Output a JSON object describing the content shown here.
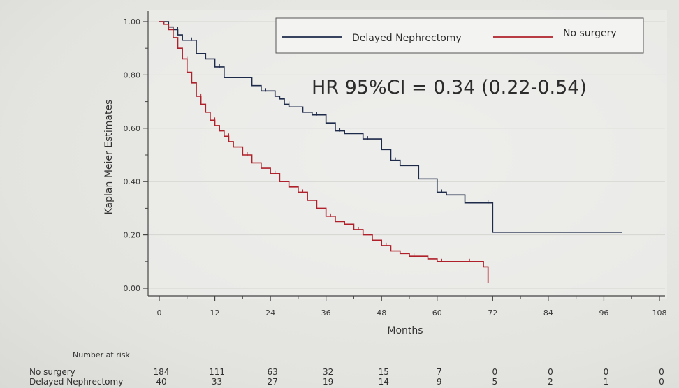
{
  "chart_data": {
    "type": "line",
    "xlabel": "Months",
    "ylabel": "Kaplan Meier Estimates",
    "xlim": [
      0,
      108
    ],
    "ylim": [
      0,
      1
    ],
    "x_ticks": [
      0,
      12,
      24,
      36,
      48,
      60,
      72,
      84,
      96,
      108
    ],
    "y_ticks": [
      "0.00",
      "0.20",
      "0.40",
      "0.60",
      "0.80",
      "1.00"
    ],
    "grid": "horizontal",
    "legend_position": "top-right",
    "annotation": "HR 95%CI = 0.34 (0.22-0.54)",
    "series": [
      {
        "name": "Delayed Nephrectomy",
        "color": "#1e2a4a",
        "step": true,
        "x": [
          0,
          2,
          3,
          4,
          5,
          6,
          8,
          10,
          12,
          14,
          20,
          22,
          25,
          26,
          27,
          28,
          31,
          33,
          35,
          36,
          38,
          40,
          42,
          44,
          46,
          48,
          50,
          52,
          56,
          60,
          62,
          66,
          70,
          72,
          100
        ],
        "y": [
          1.0,
          0.98,
          0.97,
          0.95,
          0.93,
          0.93,
          0.88,
          0.86,
          0.83,
          0.79,
          0.76,
          0.74,
          0.72,
          0.71,
          0.69,
          0.68,
          0.66,
          0.65,
          0.65,
          0.62,
          0.59,
          0.58,
          0.58,
          0.56,
          0.56,
          0.52,
          0.48,
          0.46,
          0.41,
          0.36,
          0.35,
          0.32,
          0.32,
          0.21,
          0.21
        ]
      },
      {
        "name": "No surgery",
        "color": "#b0202a",
        "step": true,
        "x": [
          0,
          1,
          2,
          3,
          4,
          5,
          6,
          7,
          8,
          9,
          10,
          11,
          12,
          13,
          14,
          15,
          16,
          18,
          20,
          22,
          24,
          26,
          28,
          30,
          32,
          34,
          36,
          38,
          40,
          42,
          44,
          46,
          48,
          50,
          52,
          54,
          56,
          58,
          60,
          62,
          64,
          66,
          68,
          70,
          71
        ],
        "y": [
          1.0,
          0.99,
          0.97,
          0.94,
          0.9,
          0.86,
          0.81,
          0.77,
          0.72,
          0.69,
          0.66,
          0.63,
          0.61,
          0.59,
          0.57,
          0.55,
          0.53,
          0.5,
          0.47,
          0.45,
          0.43,
          0.4,
          0.38,
          0.36,
          0.33,
          0.3,
          0.27,
          0.25,
          0.24,
          0.22,
          0.2,
          0.18,
          0.16,
          0.14,
          0.13,
          0.12,
          0.12,
          0.11,
          0.1,
          0.1,
          0.1,
          0.1,
          0.1,
          0.08,
          0.02
        ]
      }
    ],
    "risk_table": {
      "title": "Number at risk",
      "timepoints": [
        0,
        12,
        24,
        36,
        48,
        60,
        72,
        84,
        96,
        108
      ],
      "rows": [
        {
          "label": "No surgery",
          "values": [
            "184",
            "111",
            "63",
            "32",
            "15",
            "7",
            "0",
            "0",
            "0",
            "0"
          ]
        },
        {
          "label": "Delayed Nephrectomy",
          "values": [
            "40",
            "33",
            "27",
            "19",
            "14",
            "9",
            "5",
            "2",
            "1",
            "0"
          ]
        }
      ]
    }
  }
}
